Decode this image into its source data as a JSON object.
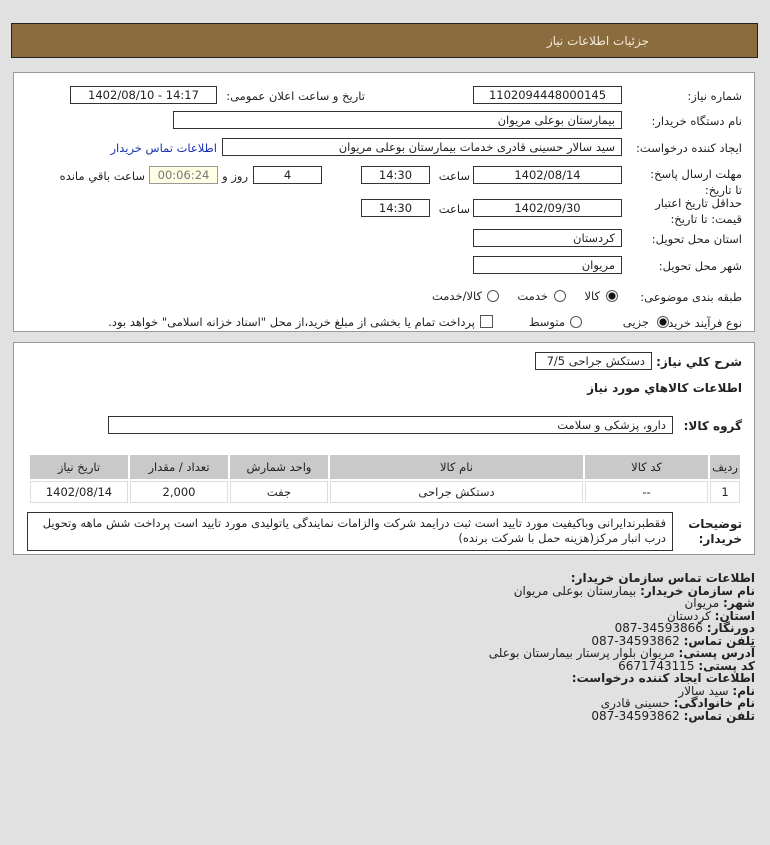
{
  "header": {
    "title": "جزئیات اطلاعات نیاز"
  },
  "form": {
    "need_number_label": "شماره نیاز:",
    "need_number": "1102094448000145",
    "announce_label": "تاریخ و ساعت اعلان عمومی:",
    "announce_value": "1402/08/10 - 14:17",
    "buyer_label": "نام دستگاه خریدار:",
    "buyer_value": "بیمارستان بوعلی مریوان",
    "creator_label": "ایجاد کننده درخواست:",
    "creator_value": "سید سالار حسینی قادری خدمات بیمارستان بوعلی مریوان",
    "contact_link": "اطلاعات تماس خریدار",
    "deadline_label": "مهلت ارسال پاسخ: تا تاریخ:",
    "deadline_date": "1402/08/14",
    "time_label": "ساعت",
    "deadline_time": "14:30",
    "days": "4",
    "days_label": "روز و",
    "remaining": "00:06:24",
    "remaining_label": "ساعت باقي مانده",
    "validity_label": "حداقل تاریخ اعتبار قیمت: تا تاریخ:",
    "validity_date": "1402/09/30",
    "validity_time": "14:30",
    "province_label": "استان محل تحویل:",
    "province": "کردستان",
    "city_label": "شهر محل تحویل:",
    "city": "مریوان",
    "category_label": "طبقه بندی موضوعی:",
    "category_options": [
      "کالا",
      "خدمت",
      "کالا/خدمت"
    ],
    "category_selected": "کالا",
    "process_label": "نوع فرآیند خرید :",
    "process_options": [
      "جزیی",
      "متوسط"
    ],
    "process_selected": "جزیی",
    "payment_note": "پرداخت تمام یا بخشی از مبلغ خرید،از محل \"اسناد خزانه اسلامی\" خواهد بود."
  },
  "needs": {
    "desc_label": "شرح کلي نیاز:",
    "desc_value": "دستکش جراحی 7/5",
    "items_title": "اطلاعات کالاهاي مورد نیاز",
    "group_label": "گروه کالا:",
    "group_value": "دارو، پزشکی و سلامت",
    "table": {
      "headers": [
        "ردیف",
        "کد کالا",
        "نام کالا",
        "واحد شمارش",
        "تعداد / مقدار",
        "تاریخ نیاز"
      ],
      "rows": [
        [
          "1",
          "--",
          "دستکش جراحی",
          "جفت",
          "2,000",
          "1402/08/14"
        ]
      ]
    },
    "notes_label": "توضیحات خریدار:",
    "notes": "فقطبرندایرانی وباکیفیت مورد تایید است ثبت درایمد شرکت والزامات نمایندگی یاتولیدی مورد تایید است پرداخت شش ماهه وتحویل درب انبار مرکز(هزینه حمل با شرکت برنده)"
  },
  "contact": {
    "title": "اطلاعات تماس سازمان خریدار:",
    "lines": [
      {
        "k": "نام سازمان خریدار:",
        "v": "بیمارستان بوعلی مریوان"
      },
      {
        "k": "شهر:",
        "v": "مریوان"
      },
      {
        "k": "استان:",
        "v": "کردستان"
      },
      {
        "k": "دورنگار:",
        "v": "087-34593866"
      },
      {
        "k": "تلفن تماس:",
        "v": "087-34593862"
      },
      {
        "k": "آدرس پستی:",
        "v": "مریوان بلوار پرستار بیمارستان بوعلی"
      },
      {
        "k": "کد پستی:",
        "v": "6671743115"
      }
    ],
    "creator_title": "اطلاعات ایجاد کننده درخواست:",
    "creator_lines": [
      {
        "k": "نام:",
        "v": "سید سالار"
      },
      {
        "k": "نام خانوادگی:",
        "v": "حسینی قادری"
      },
      {
        "k": "تلفن تماس:",
        "v": "087-34593862"
      }
    ]
  },
  "colors": {
    "header_bg": "#8b6c3f",
    "link": "#1a2fb0"
  }
}
